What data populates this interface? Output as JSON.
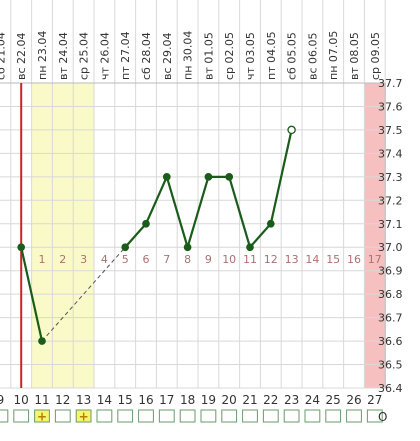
{
  "chart_data": {
    "type": "line",
    "title": "",
    "xlabel": "",
    "ylabel": "",
    "ylim": [
      36.4,
      37.7
    ],
    "yticks": [
      "37.7",
      "37.6",
      "37.5",
      "37.4",
      "37.3",
      "37.2",
      "37.1",
      "37.0",
      "36.9",
      "36.8",
      "36.7",
      "36.6",
      "36.5",
      "36.4"
    ],
    "day_numbers": [
      "9",
      "10",
      "11",
      "12",
      "13",
      "14",
      "15",
      "16",
      "17",
      "18",
      "19",
      "20",
      "21",
      "22",
      "23",
      "24",
      "25",
      "26",
      "27"
    ],
    "dates": [
      "21.04",
      "22.04",
      "23.04",
      "24.04",
      "25.04",
      "26.04",
      "27.04",
      "28.04",
      "29.04",
      "30.04",
      "01.05",
      "02.05",
      "03.05",
      "04.05",
      "05.05",
      "06.05",
      "07.05",
      "08.05",
      "09.05"
    ],
    "weekdays": [
      "сб",
      "вс",
      "пн",
      "вт",
      "ср",
      "чт",
      "пт",
      "сб",
      "вс",
      "пн",
      "вт",
      "ср",
      "чт",
      "пт",
      "сб",
      "вс",
      "пн",
      "вт",
      "ср"
    ],
    "cycle_days": [
      "1",
      "2",
      "3",
      "4",
      "5",
      "6",
      "7",
      "8",
      "9",
      "10",
      "11",
      "12",
      "13",
      "14",
      "15",
      "16",
      "17"
    ],
    "series": [
      {
        "x": [
          "10",
          "11",
          "15",
          "16",
          "17",
          "18",
          "19",
          "20",
          "21",
          "22",
          "23"
        ],
        "values": [
          37.0,
          36.6,
          37.0,
          37.1,
          37.3,
          37.0,
          37.3,
          37.3,
          37.0,
          37.1,
          37.5
        ]
      }
    ],
    "dashed_connector": {
      "from": [
        "11",
        36.6
      ],
      "to": [
        "15",
        37.0
      ]
    },
    "open_marker_at": "23",
    "highlight_range": [
      "11",
      "13"
    ],
    "today_marker": "10",
    "red_column": "27",
    "plus_marks": [
      "11",
      "13"
    ],
    "end_label": "O",
    "colors": {
      "line": "#1a5c1a",
      "highlight": "#fafac8",
      "today": "#cc2222",
      "red_column": "#f6c0c0",
      "grid": "#d8d8d8",
      "plus_box": "#f5f56e"
    }
  }
}
